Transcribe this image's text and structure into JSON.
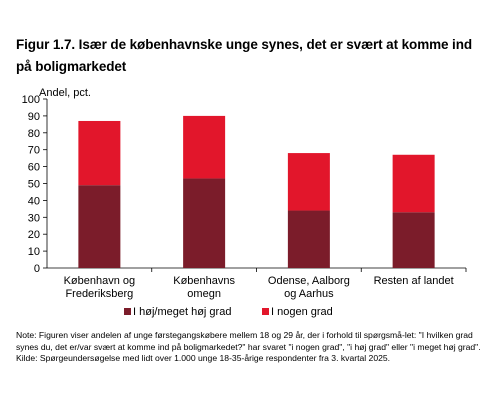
{
  "figure": {
    "title": "Figur 1.7. Især de københavnske unge synes, det er svært at komme ind på boligmarkedet",
    "note": "Note: Figuren viser andelen af unge førstegangskøbere mellem 18 og 29 år, der i forhold til spørgsmå-let: \"I hvilken grad synes du, det er/var svært at komme ind på boligmarkedet?\" har svaret \"i nogen grad\", \"i høj grad\" eller \"i meget høj grad\".",
    "source": "Kilde: Spørgeundersøgelse med lidt over 1.000 unge 18-35-årige respondenter fra 3. kvartal 2025."
  },
  "chart_data": {
    "type": "bar",
    "stacked": true,
    "ylabel": "Andel, pct.",
    "ylim": [
      0,
      100
    ],
    "yticks": [
      "0",
      "10",
      "20",
      "30",
      "40",
      "50",
      "60",
      "70",
      "80",
      "90",
      "100"
    ],
    "categories": [
      [
        "København og",
        "Frederiksberg"
      ],
      [
        "Københavns",
        "omegn"
      ],
      [
        "Odense, Aalborg",
        "og Aarhus"
      ],
      [
        "Resten af landet"
      ]
    ],
    "series": [
      {
        "name": "I høj/meget høj grad",
        "color": "#7b1c2a",
        "values": [
          49,
          53,
          34,
          33
        ]
      },
      {
        "name": "I nogen grad",
        "color": "#e2162b",
        "values": [
          38,
          37,
          34,
          34
        ]
      }
    ],
    "grid": false,
    "legend_position": "bottom"
  }
}
